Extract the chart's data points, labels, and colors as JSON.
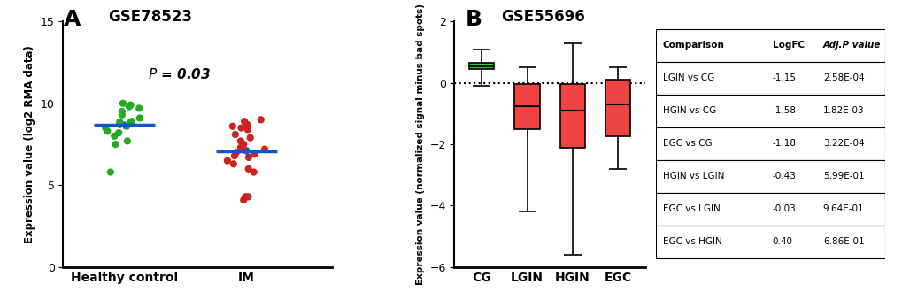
{
  "panel_a": {
    "title_letter": "A",
    "title_dataset": "GSE78523",
    "ylabel": "Expression value (log2 RMA data)",
    "pvalue_text": "P = 0.03",
    "groups": [
      "Healthy control",
      "IM"
    ],
    "group_colors": [
      "#22aa22",
      "#cc2222"
    ],
    "mean_lines": [
      8.8,
      7.2
    ],
    "ylim": [
      0,
      15
    ],
    "yticks": [
      0,
      5,
      10,
      15
    ],
    "healthy_points": [
      9.8,
      10.0,
      9.9,
      9.7,
      9.5,
      9.3,
      9.1,
      8.9,
      8.85,
      8.8,
      8.75,
      8.7,
      8.6,
      8.5,
      8.3,
      8.2,
      8.0,
      7.7,
      7.5,
      5.8
    ],
    "im_points": [
      9.0,
      8.9,
      8.7,
      8.6,
      8.5,
      8.4,
      8.1,
      7.9,
      7.7,
      7.5,
      7.3,
      7.2,
      7.1,
      7.0,
      6.9,
      6.8,
      6.7,
      6.5,
      6.3,
      6.0,
      5.8,
      4.3,
      4.3,
      4.1
    ]
  },
  "panel_b": {
    "title_letter": "B",
    "title_dataset": "GSE55696",
    "ylabel": "Expression value (normalized signal minus bad spots)",
    "categories": [
      "CG",
      "LGIN",
      "HGIN",
      "EGC"
    ],
    "colors": [
      "#33cc33",
      "#ee4444",
      "#ee4444",
      "#ee4444"
    ],
    "box_stats": {
      "CG": {
        "median": 0.55,
        "q1": 0.45,
        "q3": 0.65,
        "whisker_low": -0.1,
        "whisker_high": 1.1
      },
      "LGIN": {
        "median": -0.75,
        "q1": -1.5,
        "q3": -0.05,
        "whisker_low": -4.2,
        "whisker_high": 0.5
      },
      "HGIN": {
        "median": -0.9,
        "q1": -2.1,
        "q3": -0.05,
        "whisker_low": -5.6,
        "whisker_high": 1.3
      },
      "EGC": {
        "median": -0.7,
        "q1": -1.75,
        "q3": 0.1,
        "whisker_low": -2.8,
        "whisker_high": 0.5
      }
    },
    "ylim": [
      -6,
      2
    ],
    "yticks": [
      -6,
      -4,
      -2,
      0,
      2
    ],
    "table": {
      "header": [
        "Comparison",
        "LogFC",
        "Adj.P value"
      ],
      "rows": [
        [
          "LGIN vs CG",
          "-1.15",
          "2.58E-04"
        ],
        [
          "HGIN vs CG",
          "-1.58",
          "1.82E-03"
        ],
        [
          "EGC vs CG",
          "-1.18",
          "3.22E-04"
        ],
        [
          "HGIN vs LGIN",
          "-0.43",
          "5.99E-01"
        ],
        [
          "EGC vs LGIN",
          "-0.03",
          "9.64E-01"
        ],
        [
          "EGC vs HGIN",
          "0.40",
          "6.86E-01"
        ]
      ]
    }
  }
}
